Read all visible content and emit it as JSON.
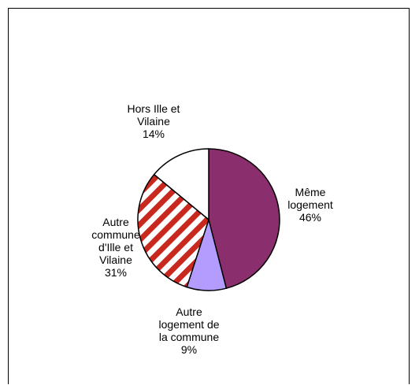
{
  "chart_data": {
    "type": "pie",
    "slices": [
      {
        "label": [
          "Même",
          "logement"
        ],
        "value": 46,
        "value_text": "46%",
        "color": "#8b2e6e",
        "fill": "solid"
      },
      {
        "label": [
          "Autre",
          "logement de",
          "la commune"
        ],
        "value": 9,
        "value_text": "9%",
        "color": "#b49cff",
        "fill": "solid"
      },
      {
        "label": [
          "Autre",
          "commune",
          "d'Ille et",
          "Vilaine"
        ],
        "value": 31,
        "value_text": "31%",
        "color": "#c8281e",
        "fill": "hatched"
      },
      {
        "label": [
          "Hors Ille et",
          "Vilaine"
        ],
        "value": 14,
        "value_text": "14%",
        "color": "#ffffff",
        "fill": "solid"
      }
    ],
    "start_angle_deg": 0,
    "direction": "clockwise",
    "legend": "none",
    "colors": {
      "outline": "#000000",
      "hatch_background": "#ffffff"
    }
  }
}
